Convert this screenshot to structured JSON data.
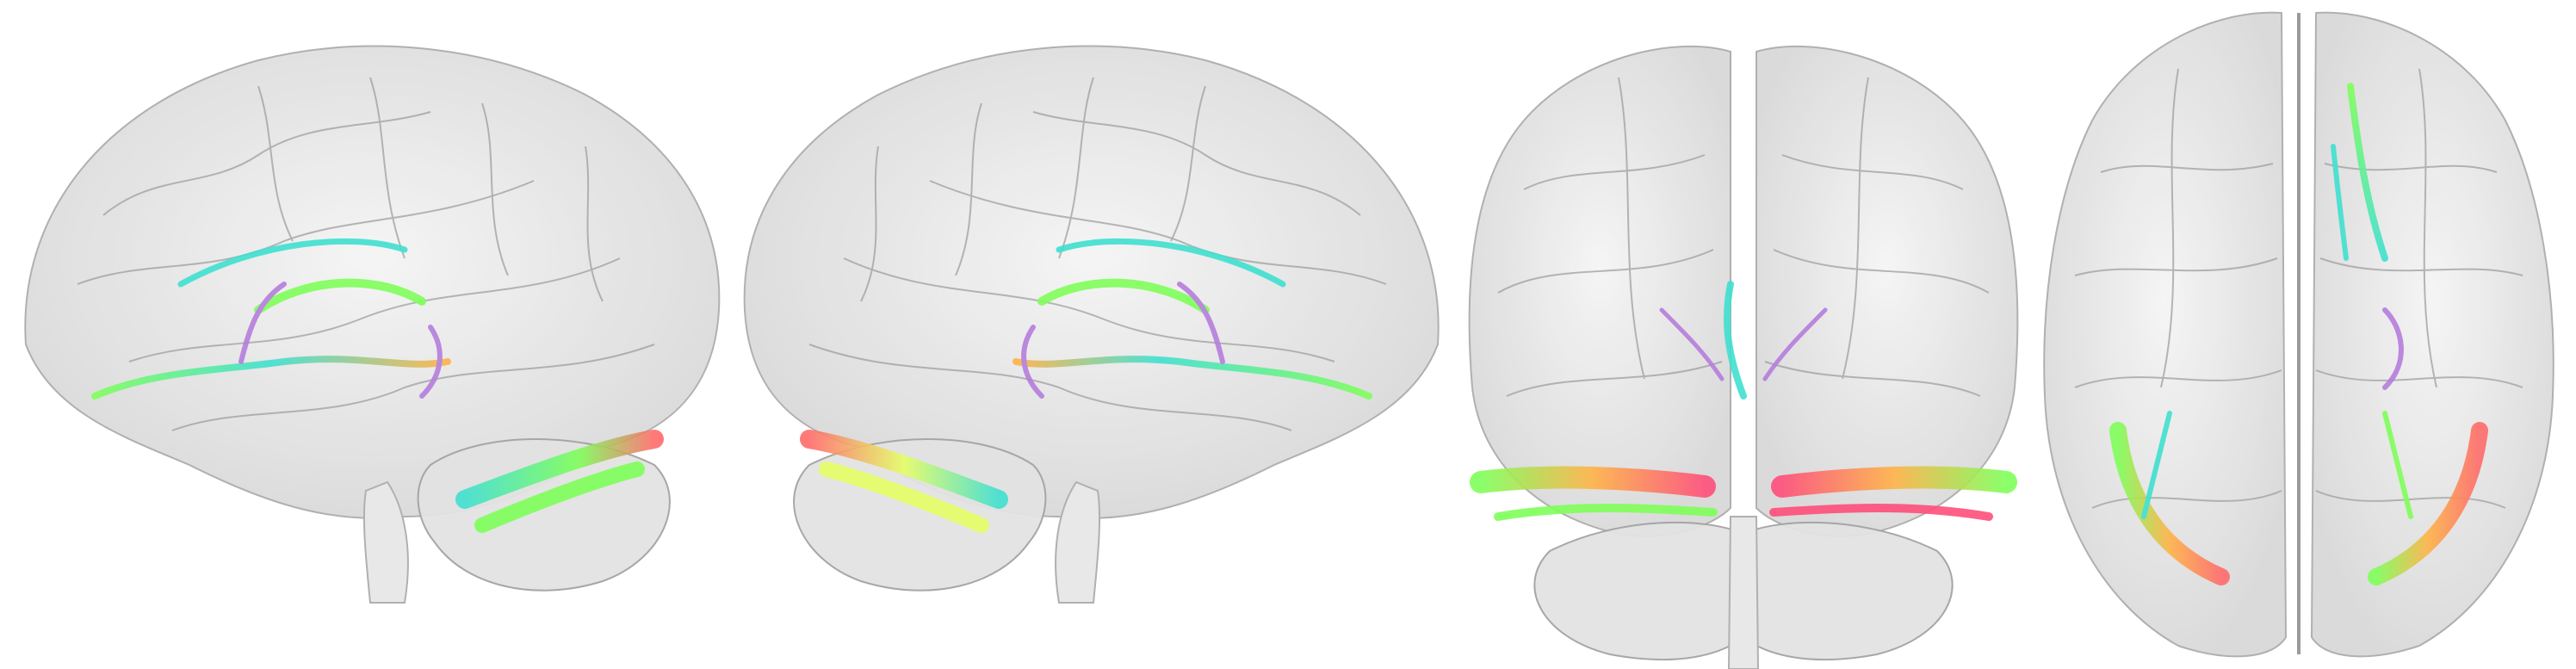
{
  "figure": {
    "views": [
      {
        "id": "left-lateral",
        "kind": "lateral",
        "hemisphere_facing": "left"
      },
      {
        "id": "right-lateral",
        "kind": "lateral",
        "hemisphere_facing": "right"
      },
      {
        "id": "posterior",
        "kind": "posterior"
      },
      {
        "id": "superior",
        "kind": "superior"
      }
    ],
    "brain_surface_color": "#d9d9d9",
    "background_color": "#ffffff",
    "tract_colors": [
      "#7fff5a",
      "#40e0d0",
      "#ff6b6b",
      "#ffb347",
      "#b57edc",
      "#e6ff66",
      "#ff4f7a"
    ]
  }
}
